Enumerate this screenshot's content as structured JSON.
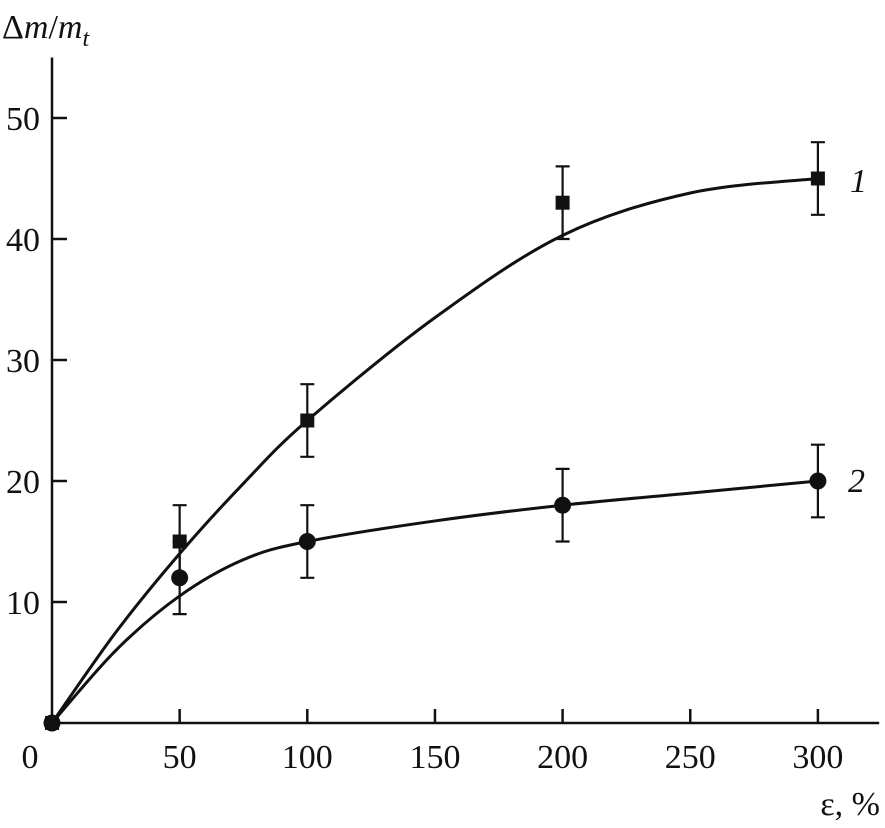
{
  "chart_data": {
    "type": "line",
    "title": "",
    "ylabel": "Δm/m_t",
    "ylabel_parts": {
      "main": "Δ",
      "m1": "m",
      "slash": "/",
      "m2": "m",
      "sub": "t"
    },
    "xlabel": "ε, %",
    "xlim": [
      0,
      324
    ],
    "ylim": [
      0,
      55
    ],
    "xticks": [
      0,
      50,
      100,
      150,
      200,
      250,
      300
    ],
    "yticks": [
      10,
      20,
      30,
      40,
      50
    ],
    "xtick_labels": [
      "0",
      "50",
      "100",
      "150",
      "200",
      "250",
      "300"
    ],
    "ytick_labels": [
      "10",
      "20",
      "30",
      "40",
      "50"
    ],
    "grid": false,
    "series": [
      {
        "name": "1",
        "marker": "square",
        "x": [
          0,
          50,
          100,
          200,
          300
        ],
        "y": [
          0,
          15,
          25,
          43,
          45
        ],
        "yerr": [
          0,
          3,
          3,
          3,
          3
        ],
        "fit_x": [
          0,
          25,
          50,
          75,
          100,
          150,
          200,
          250,
          300
        ],
        "fit_y": [
          0,
          7.5,
          14,
          19.8,
          25,
          33.5,
          40.3,
          43.8,
          45
        ]
      },
      {
        "name": "2",
        "marker": "circle",
        "x": [
          0,
          50,
          100,
          200,
          300
        ],
        "y": [
          0,
          12,
          15,
          18,
          20
        ],
        "yerr": [
          0,
          3,
          3,
          3,
          3
        ],
        "fit_x": [
          0,
          25,
          50,
          75,
          100,
          150,
          200,
          250,
          300
        ],
        "fit_y": [
          0,
          6,
          10.5,
          13.5,
          15,
          16.7,
          18,
          19,
          20
        ]
      }
    ]
  }
}
